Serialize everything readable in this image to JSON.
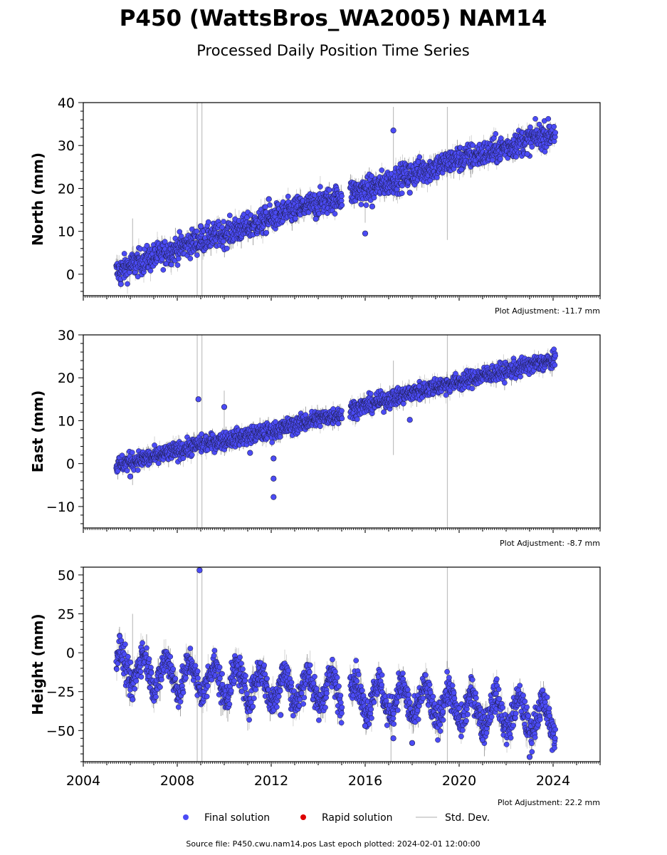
{
  "header": {
    "title": "P450 (WattsBros_WA2005) NAM14",
    "subtitle": "Processed Daily Position Time Series"
  },
  "legend": {
    "final_label": "Final solution",
    "rapid_label": "Rapid solution",
    "std_label": "Std. Dev."
  },
  "footer": {
    "source": "Source file: P450.cwu.nam14.pos  Last epoch plotted: 2024-02-01 12:00:00"
  },
  "colors": {
    "final": "#4b4bf5",
    "rapid": "#dd0000",
    "std": "#bbbbbb",
    "axis": "#000000"
  },
  "chart_data": [
    {
      "type": "scatter",
      "ylabel": "North (mm)",
      "adjustment": "Plot Adjustment: -11.7 mm",
      "xlim": [
        2004,
        2026
      ],
      "ylim": [
        -5,
        40
      ],
      "yticks": [
        0,
        10,
        20,
        30,
        40
      ],
      "show_xticklabels": false,
      "grid": false,
      "series": [
        {
          "type": "trend",
          "x": [
            2005.4,
            2006.0,
            2007.0,
            2008.0,
            2009.0,
            2010.0,
            2011.0,
            2012.0,
            2013.0,
            2014.0,
            2015.0,
            2015.3,
            2016.0,
            2017.0,
            2018.0,
            2019.0,
            2020.0,
            2021.0,
            2022.0,
            2023.0,
            2024.1
          ],
          "y": [
            0.5,
            2.0,
            4.0,
            6.0,
            8.0,
            9.5,
            11.0,
            13.0,
            15.0,
            16.5,
            18.0,
            19.0,
            19.5,
            21.5,
            23.5,
            25.0,
            27.0,
            28.0,
            29.5,
            31.5,
            33.0
          ],
          "noise": 1.5,
          "std": 1.8
        }
      ],
      "outliers": [
        [
          2005.6,
          -2.3
        ],
        [
          2009.0,
          11.2
        ],
        [
          2011.9,
          17.5
        ],
        [
          2013.9,
          12.9
        ],
        [
          2016.0,
          9.5
        ],
        [
          2016.3,
          15.8
        ],
        [
          2017.2,
          33.5
        ],
        [
          2017.9,
          19.0
        ],
        [
          2020.1,
          24.4
        ],
        [
          2022.9,
          28.0
        ]
      ],
      "spikes": [
        [
          2008.85,
          -5,
          40
        ],
        [
          2009.05,
          -5,
          40
        ],
        [
          2017.2,
          17,
          39
        ],
        [
          2019.5,
          8,
          39
        ],
        [
          2006.1,
          0,
          13
        ],
        [
          2016.0,
          12,
          24
        ]
      ]
    },
    {
      "type": "scatter",
      "ylabel": "East (mm)",
      "adjustment": "Plot Adjustment: -8.7 mm",
      "xlim": [
        2004,
        2026
      ],
      "ylim": [
        -15,
        30
      ],
      "yticks": [
        -10,
        0,
        10,
        20,
        30
      ],
      "show_xticklabels": false,
      "grid": false,
      "series": [
        {
          "type": "trend",
          "x": [
            2005.4,
            2006.0,
            2007.0,
            2008.0,
            2009.0,
            2010.0,
            2011.0,
            2012.0,
            2013.0,
            2014.0,
            2015.0,
            2015.3,
            2016.0,
            2017.0,
            2018.0,
            2019.0,
            2020.0,
            2021.0,
            2022.0,
            2023.0,
            2024.1
          ],
          "y": [
            -0.5,
            0.5,
            1.5,
            3.0,
            4.5,
            5.5,
            6.5,
            7.5,
            9.0,
            10.5,
            11.5,
            12.5,
            13.5,
            15.0,
            16.5,
            18.0,
            19.0,
            20.5,
            21.5,
            23.0,
            24.0
          ],
          "noise": 1.0,
          "std": 1.5
        }
      ],
      "outliers": [
        [
          2006.0,
          -3.0
        ],
        [
          2008.9,
          15.0
        ],
        [
          2010.0,
          13.2
        ],
        [
          2011.1,
          2.5
        ],
        [
          2012.1,
          1.2
        ],
        [
          2012.1,
          -3.5
        ],
        [
          2012.1,
          -7.8
        ],
        [
          2017.9,
          10.2
        ],
        [
          2018.3,
          18.0
        ]
      ],
      "spikes": [
        [
          2008.85,
          -15,
          30
        ],
        [
          2009.05,
          -15,
          30
        ],
        [
          2019.5,
          -15,
          30
        ],
        [
          2017.2,
          2,
          24
        ],
        [
          2010.0,
          6,
          17
        ],
        [
          2006.1,
          -5,
          2
        ]
      ]
    },
    {
      "type": "scatter",
      "ylabel": "Height (mm)",
      "adjustment": "Plot Adjustment: 22.2 mm",
      "xlim": [
        2004,
        2026
      ],
      "ylim": [
        -70,
        55
      ],
      "yticks": [
        -50,
        -25,
        0,
        25,
        50
      ],
      "xticks": [
        2004,
        2008,
        2012,
        2016,
        2020,
        2024
      ],
      "show_xticklabels": true,
      "grid": false,
      "series": [
        {
          "type": "seasonal",
          "x": [
            2005.4,
            2008.0,
            2012.0,
            2015.3,
            2016.0,
            2020.0,
            2024.1
          ],
          "y": [
            -8,
            -15,
            -22,
            -25,
            -28,
            -35,
            -43
          ],
          "amplitude": 10,
          "noise": 5,
          "std": 7
        }
      ],
      "outliers": [
        [
          2008.95,
          53
        ],
        [
          2006.1,
          -30
        ],
        [
          2016.0,
          -47
        ],
        [
          2017.2,
          -55
        ],
        [
          2018.0,
          -58
        ],
        [
          2021.0,
          -56
        ],
        [
          2023.0,
          -67
        ],
        [
          2012.4,
          -40
        ]
      ],
      "spikes": [
        [
          2008.85,
          -70,
          55
        ],
        [
          2009.05,
          -70,
          55
        ],
        [
          2019.5,
          -70,
          55
        ],
        [
          2006.1,
          -5,
          25
        ],
        [
          2017.1,
          -70,
          -25
        ],
        [
          2011.0,
          -50,
          -30
        ]
      ]
    }
  ]
}
